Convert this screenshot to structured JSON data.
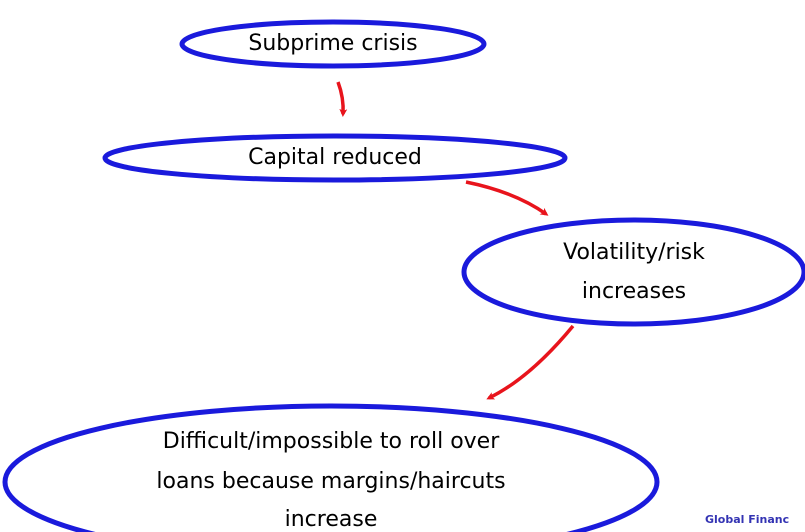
{
  "nodes": [
    {
      "lines": [
        "Subprime crisis"
      ]
    },
    {
      "lines": [
        "Capital reduced"
      ]
    },
    {
      "lines": [
        "Volatility/risk",
        "increases"
      ]
    },
    {
      "lines": [
        "Difficult/impossible to roll over",
        "loans because margins/haircuts",
        "increase"
      ]
    }
  ],
  "footer": "Global Financ"
}
